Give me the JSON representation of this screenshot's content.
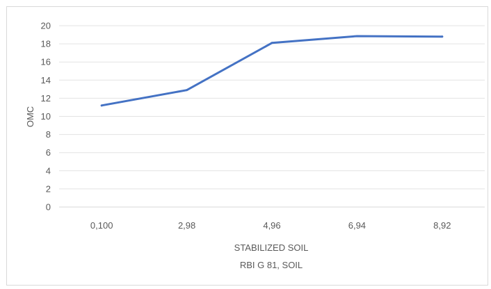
{
  "chart_data": {
    "type": "line",
    "title": "",
    "categories": [
      "0,100",
      "2,98",
      "4,96",
      "6,94",
      "8,92"
    ],
    "series": [
      {
        "values": [
          11.2,
          12.9,
          18.1,
          18.85,
          18.8
        ],
        "color": "#4472c4"
      }
    ],
    "xlabel": [
      "STABILIZED SOIL",
      "RBI G 81, SOIL"
    ],
    "ylabel": "OMC",
    "ylim": [
      0,
      20
    ],
    "yticks": [
      0,
      2,
      4,
      6,
      8,
      10,
      12,
      14,
      16,
      18,
      20
    ],
    "grid": true,
    "legend": "none"
  }
}
